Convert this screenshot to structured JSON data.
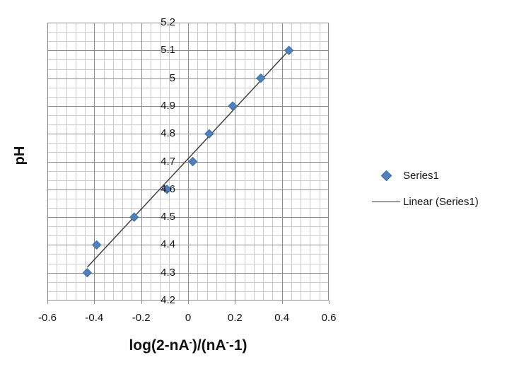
{
  "chart_data": {
    "type": "scatter",
    "title": "",
    "xlabel": "log(2-nA-)/(nA--1)",
    "xlabel_segments": [
      {
        "text": "log(2-nA"
      },
      {
        "text": "-",
        "sup": true
      },
      {
        "text": ")/(nA"
      },
      {
        "text": "-",
        "sup": true
      },
      {
        "text": "-1)"
      }
    ],
    "ylabel": "pH",
    "series": [
      {
        "name": "Series1",
        "type": "scatter",
        "marker": "diamond",
        "x": [
          -0.43,
          -0.39,
          -0.23,
          -0.09,
          0.02,
          0.09,
          0.19,
          0.31,
          0.43
        ],
        "y": [
          4.3,
          4.4,
          4.5,
          4.6,
          4.7,
          4.8,
          4.9,
          5.0,
          5.1
        ]
      },
      {
        "name": "Linear (Series1)",
        "type": "linear-trendline",
        "fit_of": "Series1"
      }
    ],
    "x_axis": {
      "min": -0.6,
      "max": 0.6,
      "major_unit": 0.2,
      "minor_per_major": 5,
      "tick_labels": [
        "-0.6",
        "-0.4",
        "-0.2",
        "0",
        "0.2",
        "0.4",
        "0.6"
      ]
    },
    "y_axis": {
      "min": 4.2,
      "max": 5.2,
      "major_unit": 0.1,
      "minor_per_major": 3,
      "tick_labels": [
        "5.2",
        "5.1",
        "5",
        "4.9",
        "4.8",
        "4.7",
        "4.6",
        "4.5",
        "4.4",
        "4.3",
        "4.2"
      ]
    },
    "grid": {
      "minor": true,
      "major": true
    },
    "legend_position": "right"
  },
  "legend": {
    "items": [
      {
        "label": "Series1",
        "marker": "diamond"
      },
      {
        "label": "Linear (Series1)",
        "marker": "line"
      }
    ]
  },
  "colors": {
    "marker_fill": "#4f81bd",
    "marker_border": "#3c6ca8",
    "trendline": "#3a3a3a",
    "grid_minor": "#c9c9c9",
    "grid_major": "#8c8c8c",
    "plot_border": "#8c8c8c",
    "tick_mark": "#8c8c8c",
    "axis_text": "#141414"
  }
}
